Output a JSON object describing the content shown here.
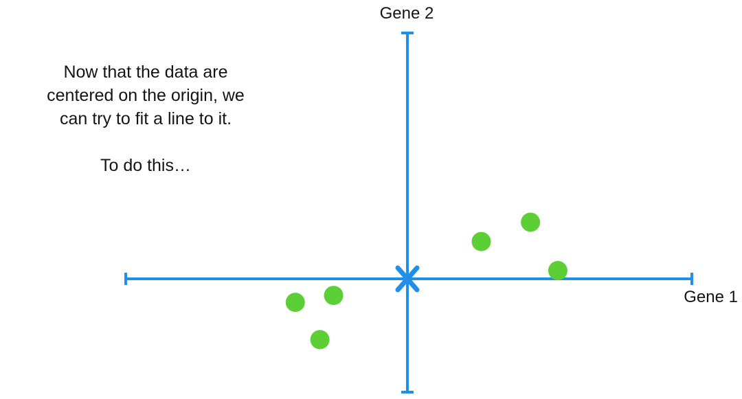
{
  "caption": {
    "line1": "Now that the data are",
    "line2": "centered on the origin, we",
    "line3": "can try to fit a line to it.",
    "line4": "To do this…"
  },
  "axes": {
    "x_label": "Gene 1",
    "y_label": "Gene 2"
  },
  "colors": {
    "axis": "#1f8fe8",
    "point": "#5ccf36",
    "text": "#141414",
    "background": "#ffffff"
  },
  "chart_data": {
    "type": "scatter",
    "xlabel": "Gene 1",
    "ylabel": "Gene 2",
    "origin_marker": "x",
    "xlim": [
      -10.3,
      10.4
    ],
    "ylim": [
      -4.1,
      8.9
    ],
    "points": [
      {
        "x": 2.7,
        "y": 1.35
      },
      {
        "x": 4.5,
        "y": 2.05
      },
      {
        "x": 5.5,
        "y": 0.3
      },
      {
        "x": -2.7,
        "y": -0.6
      },
      {
        "x": -4.1,
        "y": -0.85
      },
      {
        "x": -3.2,
        "y": -2.2
      }
    ]
  }
}
